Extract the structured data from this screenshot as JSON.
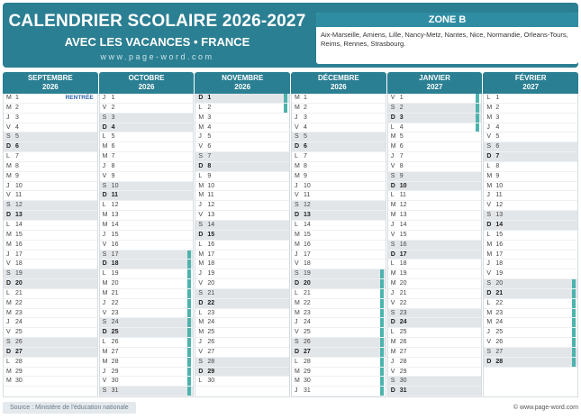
{
  "header": {
    "title": "CALENDRIER SCOLAIRE 2026-2027",
    "subtitle": "AVEC LES VACANCES • FRANCE",
    "website": "www.page-word.com"
  },
  "zone": {
    "title": "ZONE B",
    "cities": "Aix-Marseille, Amiens, Lille, Nancy-Metz, Nantes, Nice, Normandie, Orleans-Tours, Reims, Rennes, Strasbourg."
  },
  "colors": {
    "header": "#2b7f93",
    "vacation": "#4db3ad",
    "weekend": "#e3e6e9"
  },
  "months": [
    {
      "name": "SEPTEMBRE",
      "year": "2026",
      "start": 1,
      "days": 30,
      "note_day": 1,
      "note": "RENTRÉE",
      "vacations": []
    },
    {
      "name": "OCTOBRE",
      "year": "2026",
      "start": 3,
      "days": 31,
      "vacations": [
        [
          17,
          31
        ]
      ]
    },
    {
      "name": "NOVEMBRE",
      "year": "2026",
      "start": 6,
      "days": 30,
      "vacations": [
        [
          1,
          2
        ]
      ]
    },
    {
      "name": "DÉCEMBRE",
      "year": "2026",
      "start": 1,
      "days": 31,
      "vacations": [
        [
          19,
          31
        ]
      ]
    },
    {
      "name": "JANVIER",
      "year": "2027",
      "start": 4,
      "days": 31,
      "vacations": [
        [
          1,
          4
        ]
      ]
    },
    {
      "name": "FÉVRIER",
      "year": "2027",
      "start": 0,
      "days": 28,
      "vacations": [
        [
          20,
          28
        ]
      ]
    }
  ],
  "weekday_letters": [
    "L",
    "M",
    "M",
    "J",
    "V",
    "S",
    "D"
  ],
  "footer": {
    "source": "Source : Ministère de l'éducation nationale",
    "credit": "© www.page-word.com"
  }
}
